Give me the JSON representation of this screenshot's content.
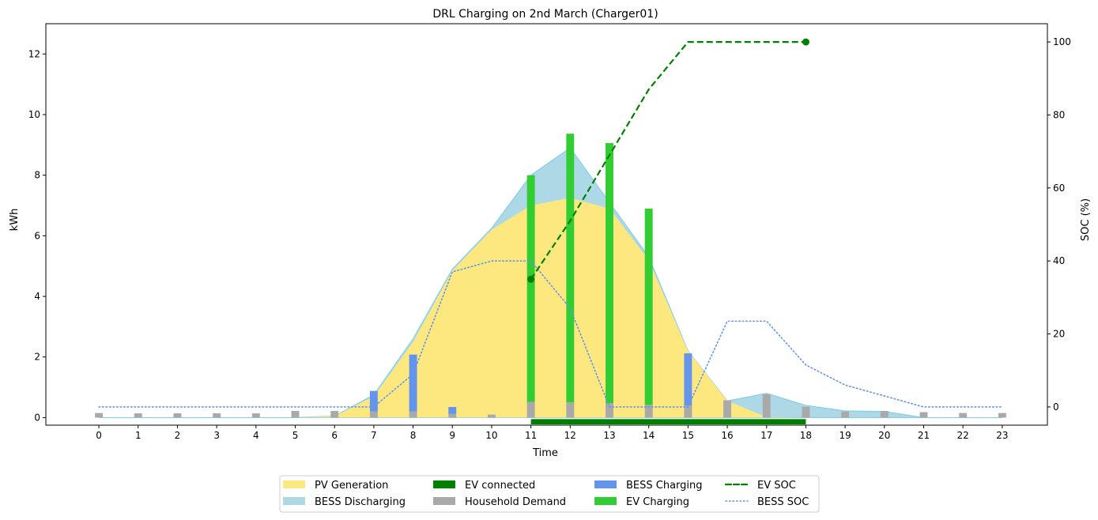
{
  "chart_data": {
    "type": "bar",
    "title": "DRL Charging on 2nd March (Charger01)",
    "xlabel": "Time",
    "ylabel": "kWh",
    "y2label": "SOC (%)",
    "x": [
      0,
      1,
      2,
      3,
      4,
      5,
      6,
      7,
      8,
      9,
      10,
      11,
      12,
      13,
      14,
      15,
      16,
      17,
      18,
      19,
      20,
      21,
      22,
      23
    ],
    "xlim": [
      -1.35,
      24.15
    ],
    "ylim": [
      -0.25,
      13.0
    ],
    "y2lim": [
      -5.0,
      105.0
    ],
    "yticks": [
      0,
      2,
      4,
      6,
      8,
      10,
      12
    ],
    "y2ticks": [
      0,
      20,
      40,
      60,
      80,
      100
    ],
    "legend_position": "bottom-center",
    "colors": {
      "pv": "#fde87f",
      "bess_discharge": "#add8e6",
      "bess_discharge_line": "#87ceeb",
      "ev_connected": "#008000",
      "household": "#a9a9a9",
      "bess_charge": "#6495ed",
      "ev_charge": "#32cd32",
      "ev_soc": "#008000",
      "bess_soc": "#6495ed"
    },
    "legend": [
      {
        "key": "pv",
        "label": "PV Generation",
        "style": "patch"
      },
      {
        "key": "bess_discharge",
        "label": "BESS Discharging",
        "style": "patch"
      },
      {
        "key": "ev_connected",
        "label": "EV connected",
        "style": "patch"
      },
      {
        "key": "household",
        "label": "Household Demand",
        "style": "patch"
      },
      {
        "key": "bess_charge",
        "label": "BESS Charging",
        "style": "patch"
      },
      {
        "key": "ev_charge",
        "label": "EV Charging",
        "style": "patch"
      },
      {
        "key": "ev_soc",
        "label": "EV SOC",
        "style": "dashed"
      },
      {
        "key": "bess_soc",
        "label": "BESS SOC",
        "style": "dotted"
      }
    ],
    "series": [
      {
        "name": "PV Generation",
        "key": "pv",
        "kind": "area",
        "values": [
          0,
          0,
          0,
          0,
          0,
          0,
          0.05,
          0.7,
          2.5,
          4.85,
          6.2,
          7.0,
          7.25,
          6.9,
          5.2,
          2.2,
          0.55,
          0.02,
          0,
          0,
          0,
          0,
          0,
          0
        ]
      },
      {
        "name": "BESS Discharging",
        "key": "bess_discharge",
        "kind": "area_stack_top",
        "values": [
          0,
          0,
          0,
          0,
          0,
          0,
          0.05,
          0.75,
          2.6,
          4.9,
          6.25,
          8.0,
          8.9,
          7.1,
          5.3,
          2.2,
          0.55,
          0.8,
          0.4,
          0.22,
          0.2,
          0,
          0,
          0
        ]
      },
      {
        "name": "Household Demand",
        "key": "household",
        "kind": "bar",
        "values": [
          0.15,
          0.14,
          0.14,
          0.14,
          0.14,
          0.22,
          0.22,
          0.2,
          0.2,
          0.12,
          0.1,
          0.52,
          0.5,
          0.48,
          0.42,
          0.4,
          0.57,
          0.77,
          0.36,
          0.2,
          0.22,
          0.18,
          0.15,
          0.15
        ]
      },
      {
        "name": "BESS Charging",
        "key": "bess_charge",
        "kind": "bar_stacked",
        "values": [
          0,
          0,
          0,
          0,
          0,
          0,
          0,
          0.68,
          1.88,
          0.23,
          0,
          0,
          0,
          0,
          0,
          1.72,
          0,
          0,
          0,
          0,
          0,
          0,
          0,
          0
        ]
      },
      {
        "name": "EV Charging",
        "key": "ev_charge",
        "kind": "bar_stacked",
        "values": [
          0,
          0,
          0,
          0,
          0,
          0,
          0,
          0,
          0,
          0,
          0,
          7.48,
          8.87,
          8.58,
          6.48,
          0,
          0,
          0,
          0,
          0,
          0,
          0,
          0,
          0
        ]
      },
      {
        "name": "EV SOC",
        "key": "ev_soc",
        "kind": "line_y2",
        "x": [
          11,
          12,
          13,
          14,
          15,
          16,
          17,
          18
        ],
        "values": [
          35,
          51,
          69,
          87,
          100,
          100,
          100,
          100
        ]
      },
      {
        "name": "BESS SOC",
        "key": "bess_soc",
        "kind": "line_y2",
        "values": [
          0,
          0,
          0,
          0,
          0,
          0,
          0,
          0,
          9,
          37,
          40,
          40,
          27,
          0,
          0,
          0,
          23.5,
          23.5,
          11.5,
          6,
          3,
          0,
          0,
          0
        ]
      }
    ],
    "ev_connected": {
      "start": 11,
      "end": 18
    }
  }
}
